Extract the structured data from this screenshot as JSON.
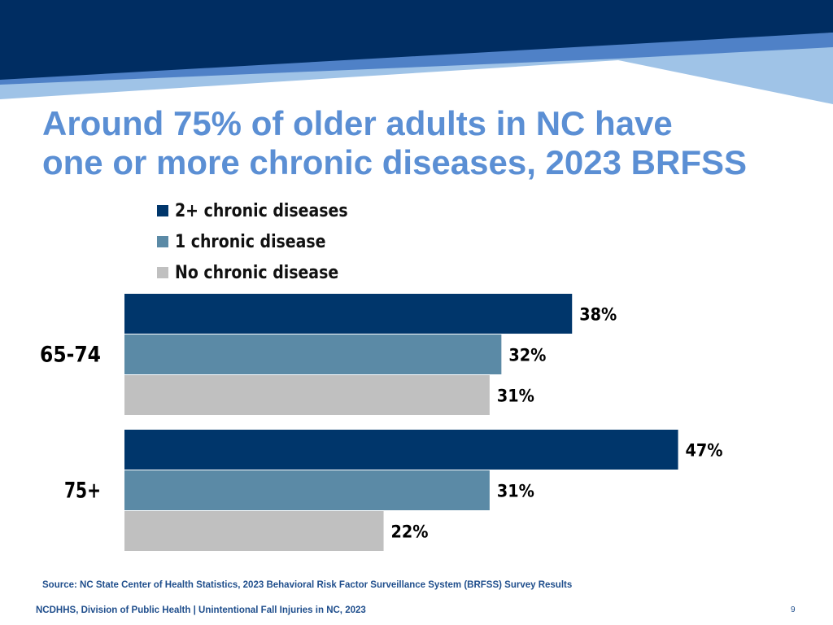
{
  "title_lines": [
    "Around 75% of older adults in NC have",
    "one or more chronic diseases, 2023 BRFSS"
  ],
  "colors": {
    "banner_dark": "#002d62",
    "banner_mid": "#4f81c7",
    "banner_light": "#9fc3e7",
    "series_2plus": "#00366b",
    "series_1": "#5b8aa6",
    "series_none": "#c0c0c0",
    "title": "#5b8fd4",
    "footer": "#1f4e8c"
  },
  "chart_data": {
    "type": "bar",
    "orientation": "horizontal",
    "categories": [
      "65-74",
      "75+"
    ],
    "series": [
      {
        "name": "2+ chronic diseases",
        "values": [
          38,
          47
        ],
        "labels": [
          "38%",
          "47%"
        ]
      },
      {
        "name": "1 chronic disease",
        "values": [
          32,
          31
        ],
        "labels": [
          "32%",
          "31%"
        ]
      },
      {
        "name": "No chronic disease",
        "values": [
          31,
          22
        ],
        "labels": [
          "31%",
          "22%"
        ]
      }
    ],
    "unit": "%",
    "xlim": [
      0,
      60
    ],
    "legend_position": "top",
    "grid": false
  },
  "source": "Source: NC State Center of Health Statistics, 2023 Behavioral Risk Factor Surveillance System (BRFSS) Survey Results",
  "footer": "NCDHHS, Division of Public Health | Unintentional Fall Injuries in NC, 2023",
  "page_number": "9"
}
